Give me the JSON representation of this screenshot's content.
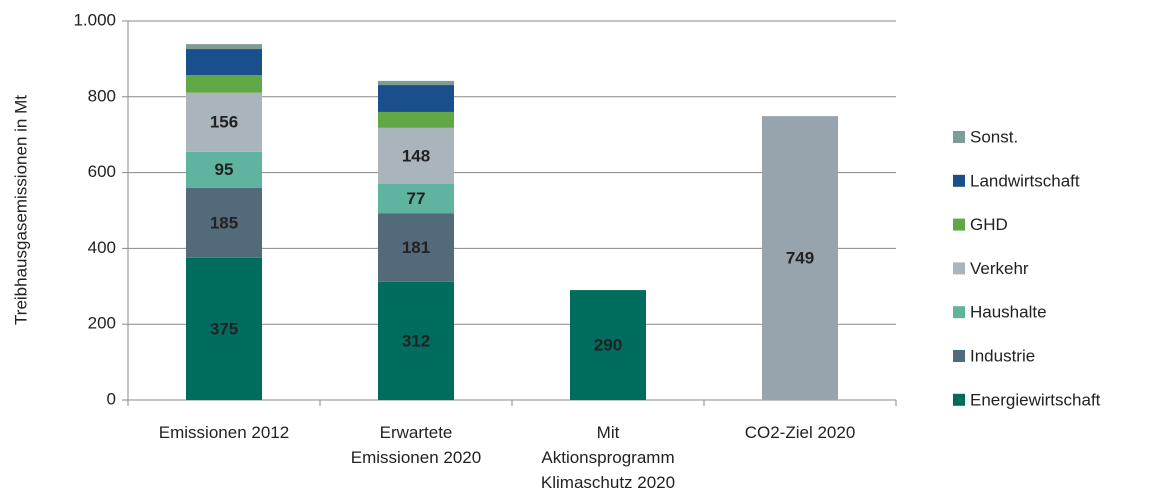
{
  "chart_data": {
    "type": "stacked_bar",
    "y_label": "Treibhausgasemissionen in Mt",
    "categories": [
      "Emissionen 2012",
      "Erwartete\nEmissionen 2020",
      "Mit\nAktionsprogramm\nKlimaschutz 2020",
      "CO2-Ziel 2020"
    ],
    "series": [
      {
        "name": "Energiewirtschaft",
        "color": "#006c5e",
        "values": [
          375,
          312,
          290,
          null
        ],
        "labels": true
      },
      {
        "name": "Industrie",
        "color": "#536a7a",
        "values": [
          185,
          181,
          null,
          null
        ],
        "labels": true
      },
      {
        "name": "Haushalte",
        "color": "#5fb4a0",
        "values": [
          95,
          77,
          null,
          null
        ],
        "labels": true
      },
      {
        "name": "Verkehr",
        "color": "#a9b4bb",
        "values": [
          156,
          148,
          null,
          null
        ],
        "labels": true
      },
      {
        "name": "GHD",
        "color": "#5fa845",
        "values": [
          46,
          42,
          null,
          null
        ],
        "labels": false
      },
      {
        "name": "Landwirtschaft",
        "color": "#1a4f8b",
        "values": [
          69,
          71,
          null,
          null
        ],
        "labels": false
      },
      {
        "name": "Sonst.",
        "color": "#7f9c99",
        "values": [
          13,
          11,
          null,
          null
        ],
        "labels": false
      },
      {
        "color": "#97a4ad",
        "values": [
          null,
          null,
          null,
          749
        ],
        "labels": true
      }
    ],
    "ylim": [
      0,
      1000
    ],
    "yticks": [
      0,
      200,
      400,
      600,
      800,
      {
        "value": 1000,
        "label": "1.000"
      }
    ],
    "grid": true,
    "legend": "right"
  }
}
